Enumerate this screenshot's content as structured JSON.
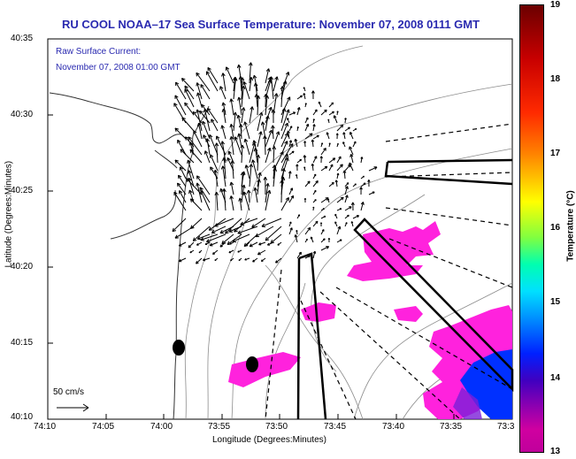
{
  "title": "RU COOL  NOAA–17  Sea Surface Temperature:  November 07, 2008 0111 GMT",
  "subtitle_line1": "Raw Surface Current:",
  "subtitle_line2": "November 07, 2008 01:00 GMT",
  "ylabel": "Latitude (Degrees:Minutes)",
  "xlabel": "Longitude (Degrees:Minutes)",
  "lat_ticks": [
    "40:35",
    "40:30",
    "40:25",
    "40:20",
    "40:15",
    "40:10"
  ],
  "lon_ticks": [
    "74:10",
    "74:05",
    "74:00",
    "73:55",
    "73:50",
    "73:45",
    "73:40",
    "73:35",
    "73:3"
  ],
  "scale_label": "50 cm/s",
  "colorbar": {
    "label": "Temperature (°C)",
    "ticks": [
      "19",
      "18",
      "17",
      "16",
      "15",
      "14",
      "13"
    ],
    "min": 13,
    "max": 19
  },
  "colors": {
    "title": "#2a2ab0",
    "sst_patch": "#ff22dd",
    "warm_patch": "#0030ff",
    "contour": "#8c8c8c"
  }
}
